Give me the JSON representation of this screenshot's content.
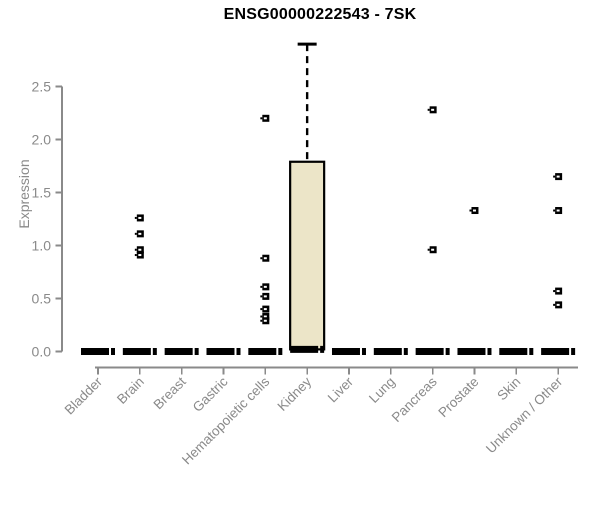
{
  "window": {
    "background_color": "#ffffff"
  },
  "chart_data": {
    "type": "boxplot",
    "title": "ENSG00000222543 - 7SK",
    "ylabel": "Expression",
    "xlabel": "",
    "ylim": [
      0,
      2.95
    ],
    "yticks": [
      0.0,
      0.5,
      1.0,
      1.5,
      2.0,
      2.5
    ],
    "ytick_labels": [
      "0.0",
      "0.5",
      "1.0",
      "1.5",
      "2.0",
      "2.5"
    ],
    "grid": false,
    "legend": null,
    "x_labels_rotation_deg": 45,
    "colors": {
      "box_fill": "#ece5c8",
      "box_border": "#000000",
      "median": "#000000",
      "whisker": "#000000",
      "outlier": "#000000",
      "axis": "#8a8a8a",
      "tick_label": "#8a8a8a",
      "title": "#000000"
    },
    "categories": [
      "Bladder",
      "Brain",
      "Breast",
      "Gastric",
      "Hematopoietic cells",
      "Kidney",
      "Liver",
      "Lung",
      "Pancreas",
      "Prostate",
      "Skin",
      "Unknown / Other"
    ],
    "boxes": [
      {
        "category": "Bladder",
        "median": 0,
        "q1": 0,
        "q3": 0,
        "whisker_low": 0,
        "whisker_high": 0,
        "outliers": []
      },
      {
        "category": "Brain",
        "median": 0,
        "q1": 0,
        "q3": 0,
        "whisker_low": 0,
        "whisker_high": 0,
        "outliers": [
          1.26,
          1.11,
          0.96,
          0.91
        ]
      },
      {
        "category": "Breast",
        "median": 0,
        "q1": 0,
        "q3": 0,
        "whisker_low": 0,
        "whisker_high": 0,
        "outliers": []
      },
      {
        "category": "Gastric",
        "median": 0,
        "q1": 0,
        "q3": 0,
        "whisker_low": 0,
        "whisker_high": 0,
        "outliers": []
      },
      {
        "category": "Hematopoietic cells",
        "median": 0,
        "q1": 0,
        "q3": 0,
        "whisker_low": 0,
        "whisker_high": 0,
        "outliers": [
          2.2,
          0.88,
          0.61,
          0.52,
          0.4,
          0.33,
          0.29
        ]
      },
      {
        "category": "Kidney",
        "median": 0.02,
        "q1": 0.02,
        "q3": 1.79,
        "whisker_low": 0,
        "whisker_high": 2.9,
        "outliers": []
      },
      {
        "category": "Liver",
        "median": 0,
        "q1": 0,
        "q3": 0,
        "whisker_low": 0,
        "whisker_high": 0,
        "outliers": []
      },
      {
        "category": "Lung",
        "median": 0,
        "q1": 0,
        "q3": 0,
        "whisker_low": 0,
        "whisker_high": 0,
        "outliers": []
      },
      {
        "category": "Pancreas",
        "median": 0,
        "q1": 0,
        "q3": 0,
        "whisker_low": 0,
        "whisker_high": 0,
        "outliers": [
          2.28,
          0.96
        ]
      },
      {
        "category": "Prostate",
        "median": 0,
        "q1": 0,
        "q3": 0,
        "whisker_low": 0,
        "whisker_high": 0,
        "outliers": [
          1.33
        ]
      },
      {
        "category": "Skin",
        "median": 0,
        "q1": 0,
        "q3": 0,
        "whisker_low": 0,
        "whisker_high": 0,
        "outliers": []
      },
      {
        "category": "Unknown / Other",
        "median": 0,
        "q1": 0,
        "q3": 0,
        "whisker_low": 0,
        "whisker_high": 0,
        "outliers": [
          1.65,
          1.33,
          0.57,
          0.44
        ]
      }
    ]
  }
}
